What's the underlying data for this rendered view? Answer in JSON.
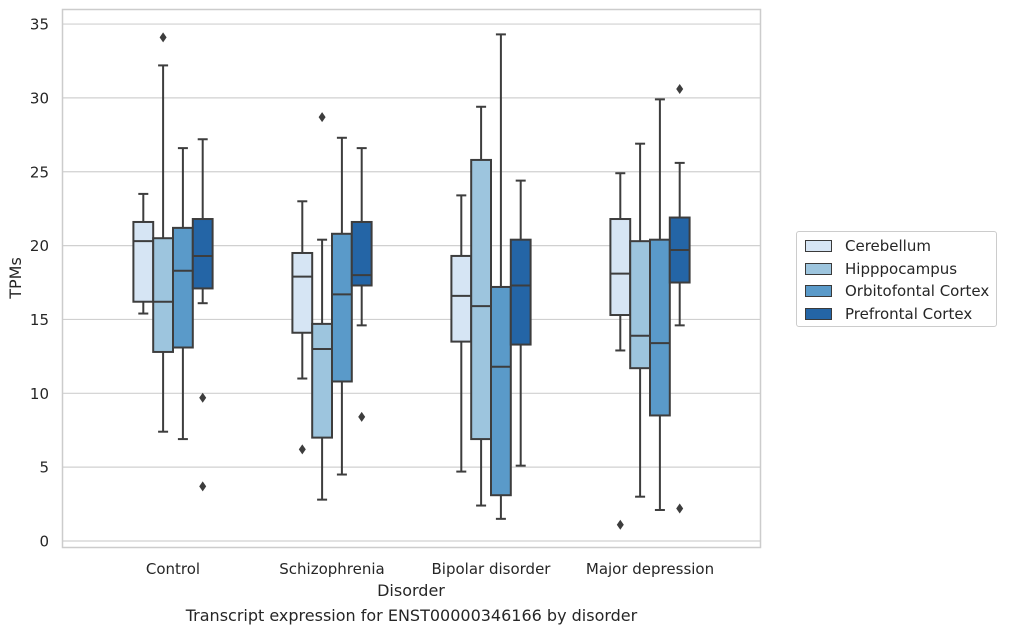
{
  "chart_data": {
    "type": "box",
    "xlabel": "Disorder",
    "ylabel": "TPMs",
    "ylim": [
      -0.5,
      36
    ],
    "yticks": [
      0,
      5,
      10,
      15,
      20,
      25,
      30,
      35
    ],
    "grid": true,
    "legend_position": "right",
    "categories": [
      "Control",
      "Schizophrenia",
      "Bipolar disorder",
      "Major depression"
    ],
    "series": [
      {
        "name": "Cerebellum",
        "color": "#d6e5f4",
        "boxes": [
          {
            "whisker_low": 15.4,
            "q1": 16.2,
            "median": 20.3,
            "q3": 21.6,
            "whisker_high": 23.5,
            "outliers": []
          },
          {
            "whisker_low": 11.0,
            "q1": 14.1,
            "median": 17.9,
            "q3": 19.5,
            "whisker_high": 23.0,
            "outliers": [
              6.2
            ]
          },
          {
            "whisker_low": 4.7,
            "q1": 13.5,
            "median": 16.6,
            "q3": 19.3,
            "whisker_high": 23.4,
            "outliers": []
          },
          {
            "whisker_low": 12.9,
            "q1": 15.3,
            "median": 18.1,
            "q3": 21.8,
            "whisker_high": 24.9,
            "outliers": [
              1.1
            ]
          }
        ]
      },
      {
        "name": "Hipppocampus",
        "color": "#9dc5de",
        "boxes": [
          {
            "whisker_low": 7.4,
            "q1": 12.8,
            "median": 16.2,
            "q3": 20.5,
            "whisker_high": 32.2,
            "outliers": [
              34.1
            ]
          },
          {
            "whisker_low": 2.8,
            "q1": 7.0,
            "median": 13.0,
            "q3": 14.7,
            "whisker_high": 20.4,
            "outliers": [
              28.7
            ]
          },
          {
            "whisker_low": 2.4,
            "q1": 6.9,
            "median": 15.9,
            "q3": 25.8,
            "whisker_high": 29.4,
            "outliers": []
          },
          {
            "whisker_low": 3.0,
            "q1": 11.7,
            "median": 13.9,
            "q3": 20.3,
            "whisker_high": 26.9,
            "outliers": []
          }
        ]
      },
      {
        "name": "Orbitofontal Cortex",
        "color": "#5a9ac9",
        "boxes": [
          {
            "whisker_low": 6.9,
            "q1": 13.1,
            "median": 18.3,
            "q3": 21.2,
            "whisker_high": 26.6,
            "outliers": []
          },
          {
            "whisker_low": 4.5,
            "q1": 10.8,
            "median": 16.7,
            "q3": 20.8,
            "whisker_high": 27.3,
            "outliers": []
          },
          {
            "whisker_low": 1.5,
            "q1": 3.1,
            "median": 11.8,
            "q3": 17.2,
            "whisker_high": 34.3,
            "outliers": []
          },
          {
            "whisker_low": 2.1,
            "q1": 8.5,
            "median": 13.4,
            "q3": 20.4,
            "whisker_high": 29.9,
            "outliers": []
          }
        ]
      },
      {
        "name": "Prefrontal Cortex",
        "color": "#2465a6",
        "boxes": [
          {
            "whisker_low": 16.1,
            "q1": 17.1,
            "median": 19.3,
            "q3": 21.8,
            "whisker_high": 27.2,
            "outliers": [
              9.7,
              3.7
            ]
          },
          {
            "whisker_low": 14.6,
            "q1": 17.3,
            "median": 18.0,
            "q3": 21.6,
            "whisker_high": 26.6,
            "outliers": [
              8.4
            ]
          },
          {
            "whisker_low": 5.1,
            "q1": 13.3,
            "median": 17.3,
            "q3": 20.4,
            "whisker_high": 24.4,
            "outliers": []
          },
          {
            "whisker_low": 14.6,
            "q1": 17.5,
            "median": 19.7,
            "q3": 21.9,
            "whisker_high": 25.6,
            "outliers": [
              2.2,
              30.6
            ]
          }
        ]
      }
    ],
    "caption": "Transcript expression for ENST00000346166 by disorder"
  }
}
